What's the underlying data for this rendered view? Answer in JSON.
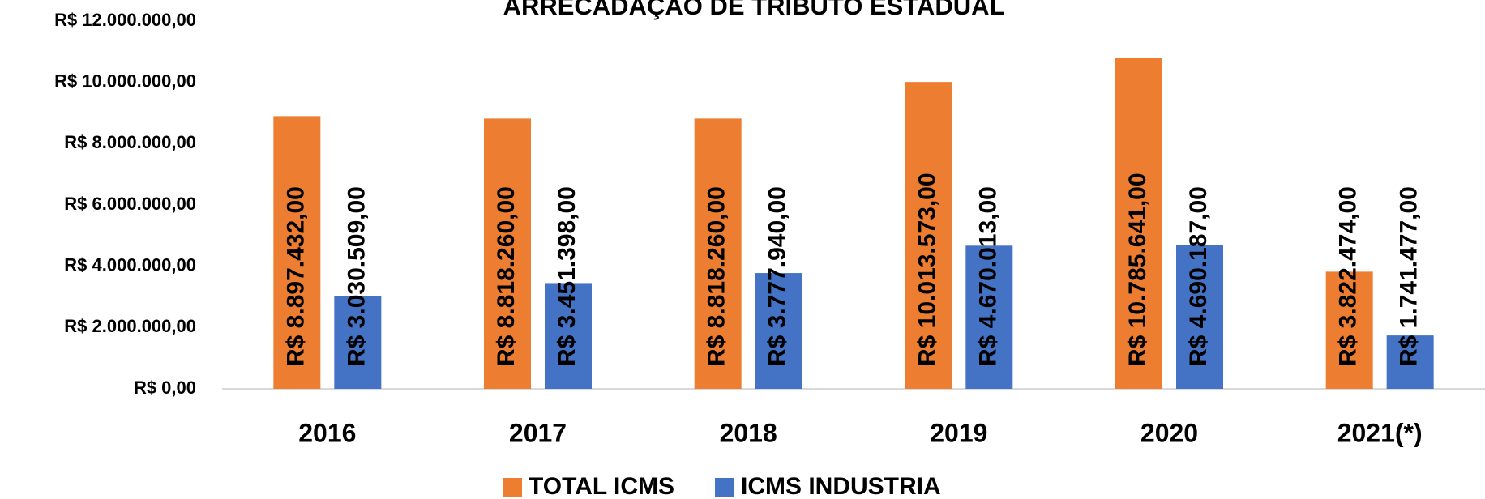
{
  "chart_data": {
    "type": "bar",
    "title": "ARRECADAÇÃO DE TRIBUTO ESTADUAL",
    "categories": [
      "2016",
      "2017",
      "2018",
      "2019",
      "2020",
      "2021(*)"
    ],
    "series": [
      {
        "name": "TOTAL ICMS",
        "color": "#ed7d31",
        "values": [
          8897432,
          8818260,
          8818260,
          10013573,
          10785641,
          3822474
        ],
        "value_labels": [
          "R$ 8.897.432,00",
          "R$ 8.818.260,00",
          "R$ 8.818.260,00",
          "R$ 10.013.573,00",
          "R$ 10.785.641,00",
          "R$ 3.822.474,00"
        ]
      },
      {
        "name": "ICMS INDUSTRIA",
        "color": "#4472c4",
        "values": [
          3030509,
          3451398,
          3777940,
          4670013,
          4690187,
          1741477
        ],
        "value_labels": [
          "R$ 3.030.509,00",
          "R$ 3.451.398,00",
          "R$ 3.777.940,00",
          "R$ 4.670.013,00",
          "R$ 4.690.187,00",
          "R$ 1.741.477,00"
        ]
      }
    ],
    "ylim": [
      0,
      12000000
    ],
    "yticks": [
      {
        "value": 0,
        "label": "R$ 0,00"
      },
      {
        "value": 2000000,
        "label": "R$ 2.000.000,00"
      },
      {
        "value": 4000000,
        "label": "R$ 4.000.000,00"
      },
      {
        "value": 6000000,
        "label": "R$ 6.000.000,00"
      },
      {
        "value": 8000000,
        "label": "R$ 8.000.000,00"
      },
      {
        "value": 10000000,
        "label": "R$ 10.000.000,00"
      },
      {
        "value": 12000000,
        "label": "R$ 12.000.000,00"
      }
    ],
    "legend": "bottom"
  }
}
